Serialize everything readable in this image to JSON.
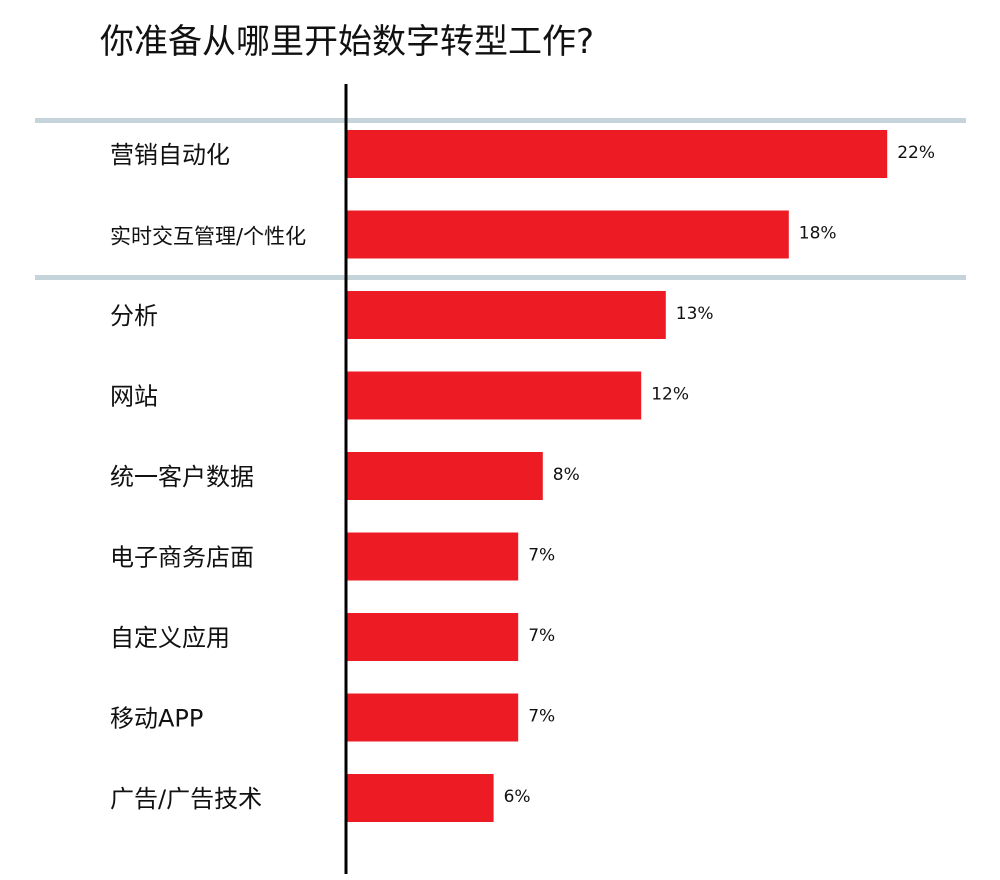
{
  "chart_data": {
    "type": "bar",
    "orientation": "horizontal",
    "title": "你准备从哪里开始数字转型工作?",
    "categories": [
      "营销自动化",
      "实时交互管理/个性化",
      "分析",
      "网站",
      "统一客户数据",
      "电子商务店面",
      "自定义应用",
      "移动APP",
      "广告/广告技术"
    ],
    "values": [
      22,
      18,
      13,
      12,
      8,
      7,
      7,
      7,
      6
    ],
    "value_labels": [
      "22%",
      "18%",
      "13%",
      "12%",
      "8%",
      "7%",
      "7%",
      "7%",
      "6%"
    ],
    "xlim": [
      0,
      30
    ],
    "xlabel": "",
    "ylabel": "",
    "legend": "none",
    "grid": false,
    "group_dividers_after": [
      -1,
      1
    ],
    "colors": {
      "bar": "#ed1c24",
      "axis": "#000000",
      "divider": "#c5d3da",
      "text": "#111111"
    }
  }
}
